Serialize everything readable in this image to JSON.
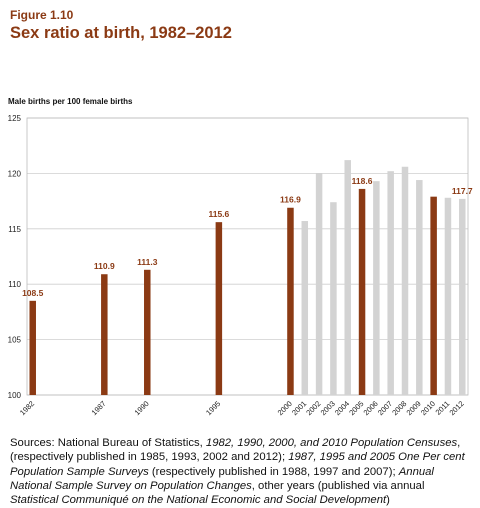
{
  "chart_data": {
    "type": "bar",
    "figure_label": "Figure 1.10",
    "title": "Sex ratio at birth, 1982–2012",
    "ylabel": "Male births per 100 female births",
    "x": [
      1982,
      1987,
      1990,
      1995,
      2000,
      2001,
      2002,
      2003,
      2004,
      2005,
      2006,
      2007,
      2008,
      2009,
      2010,
      2011,
      2012
    ],
    "values": [
      108.5,
      110.9,
      111.3,
      115.6,
      116.9,
      115.7,
      120.0,
      117.4,
      121.2,
      118.6,
      119.3,
      120.2,
      120.6,
      119.4,
      117.9,
      117.8,
      117.7
    ],
    "value_labels": [
      "108.5",
      "110.9",
      "111.3",
      "115.6",
      "116.9",
      null,
      null,
      null,
      null,
      "118.6",
      null,
      null,
      null,
      null,
      null,
      null,
      "117.7"
    ],
    "colors": [
      "#8b3a14",
      "#8b3a14",
      "#8b3a14",
      "#8b3a14",
      "#8b3a14",
      "#d3d3d3",
      "#d3d3d3",
      "#d3d3d3",
      "#d3d3d3",
      "#8b3a14",
      "#d3d3d3",
      "#d3d3d3",
      "#d3d3d3",
      "#d3d3d3",
      "#8b3a14",
      "#d3d3d3",
      "#d3d3d3"
    ],
    "xlim": [
      1981.6,
      2012.4
    ],
    "ylim": [
      100,
      125
    ],
    "yticks": [
      100,
      105,
      110,
      115,
      120,
      125
    ],
    "grid": true,
    "notes": [
      {
        "text": "Sources: National Bureau of Statistics, ",
        "italic": false
      },
      {
        "text": "1982, 1990, 2000, and 2010 Population Censuses",
        "italic": true
      },
      {
        "text": ", (respectively published in 1985, 1993, 2002 and 2012); ",
        "italic": false
      },
      {
        "text": "1987, 1995 and 2005 One Per cent Population Sample Surveys",
        "italic": true
      },
      {
        "text": " (respectively published in 1988, 1997 and 2007); ",
        "italic": false
      },
      {
        "text": "Annual National Sample Survey on Population Changes",
        "italic": true
      },
      {
        "text": ", other years (published via annual ",
        "italic": false
      },
      {
        "text": "Statistical Communiqué on the National Economic and Social Development",
        "italic": true
      },
      {
        "text": ")",
        "italic": false
      }
    ]
  }
}
